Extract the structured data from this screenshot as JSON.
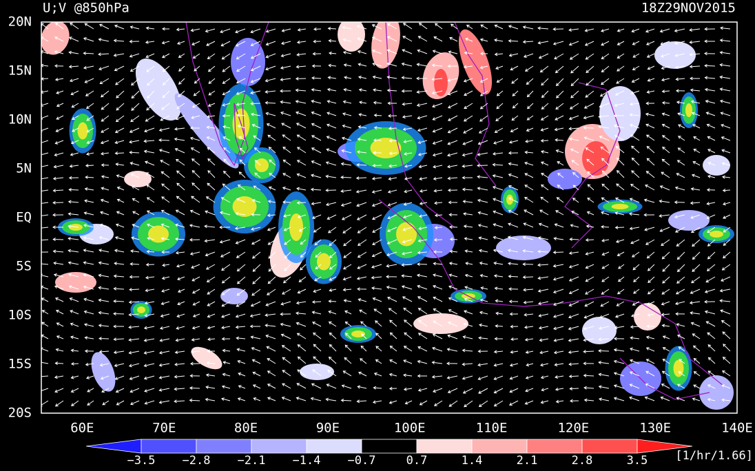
{
  "title": "U;V @850hPa",
  "time": "18Z29NOV2015",
  "lat_labels": [
    "20N",
    "15N",
    "10N",
    "5N",
    "EQ",
    "5S",
    "10S",
    "15S",
    "20S"
  ],
  "lon_labels": [
    "60E",
    "70E",
    "80E",
    "90E",
    "100E",
    "110E",
    "120E",
    "130E",
    "140E"
  ],
  "colorbar": {
    "labels": [
      "−3.5",
      "−2.8",
      "−2.1",
      "−1.4",
      "−0.7",
      "0.7",
      "1.4",
      "2.1",
      "2.8",
      "3.5"
    ],
    "colors": [
      "#1e1eff",
      "#5050ff",
      "#8080ff",
      "#b4b4ff",
      "#dcdcff",
      "#000000",
      "#ffdcdc",
      "#ffb4b4",
      "#ff8080",
      "#ff5050",
      "#ff1e1e"
    ],
    "units": "[1/hr/1.66]"
  }
}
